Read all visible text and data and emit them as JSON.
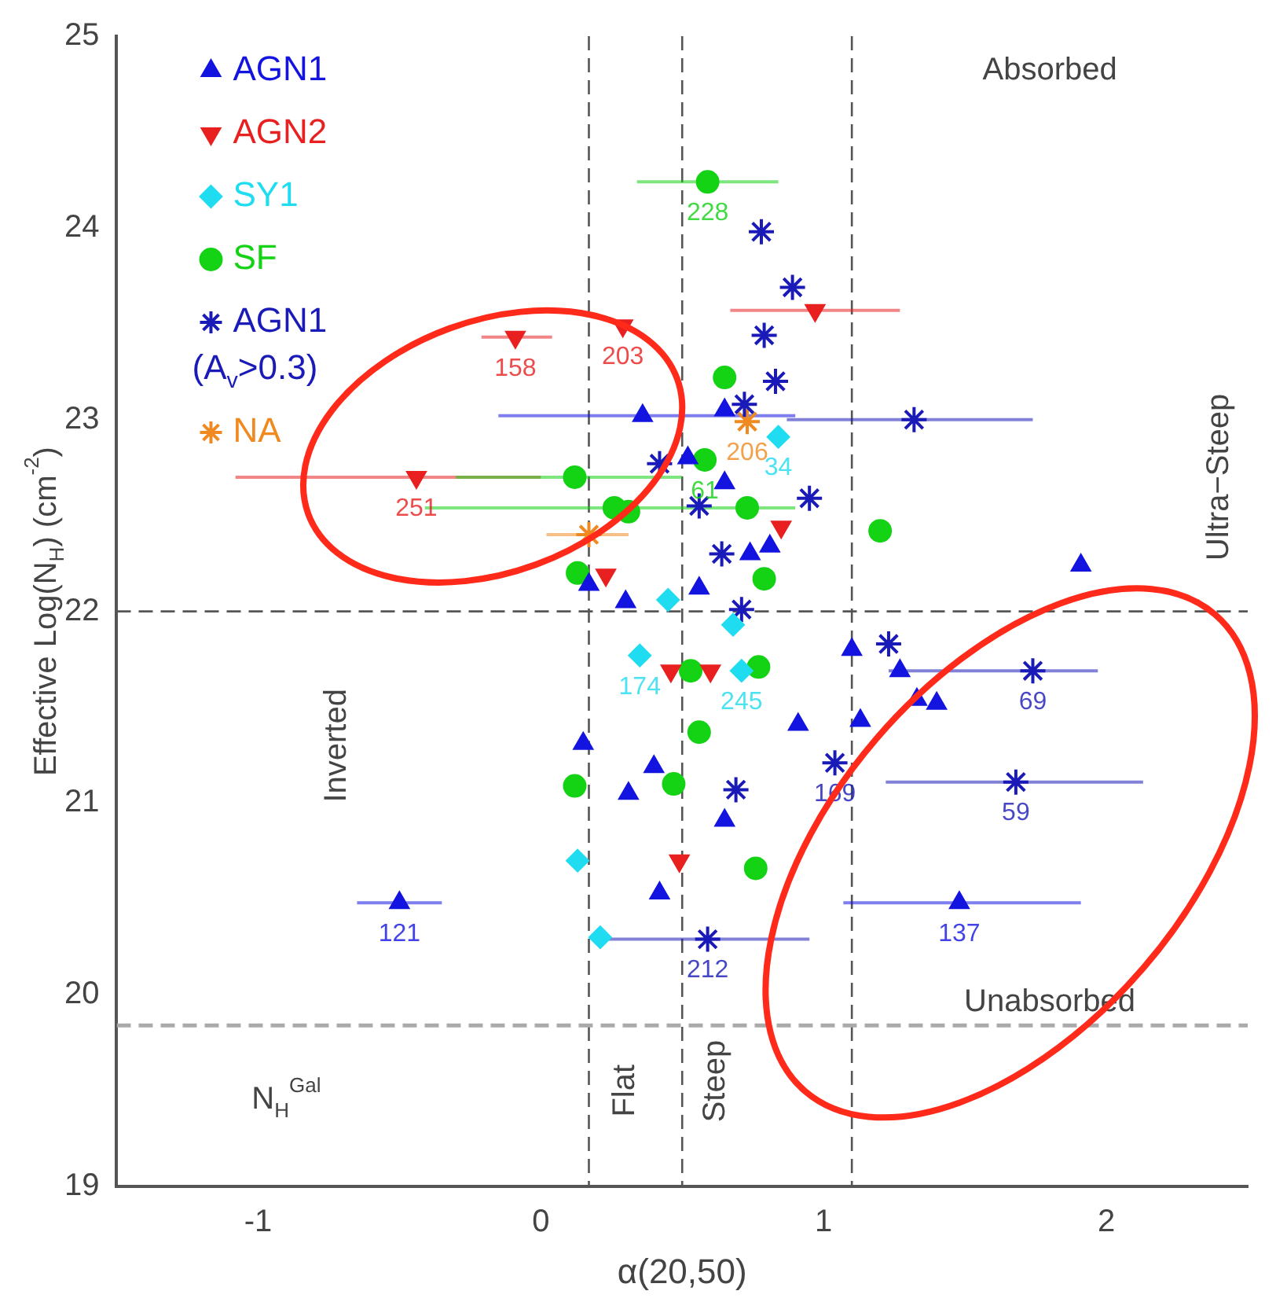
{
  "chart_data": {
    "type": "scatter",
    "xlabel": "α(20,50)",
    "ylabel": "Effective Log(N$_{H}$) (cm$^{-2}$)",
    "xlim": [
      -1.5,
      2.5
    ],
    "xticks": [
      -1,
      0,
      1,
      2
    ],
    "ylim": [
      19,
      25
    ],
    "yticks": [
      19,
      20,
      21,
      22,
      23,
      24,
      25
    ],
    "grid": false,
    "legend": "top left",
    "series": [
      {
        "name": "AGN1",
        "color": "#1414e0",
        "marker": "triangle",
        "x": [
          0.36,
          0.52,
          0.65,
          0.65,
          0.81,
          0.74,
          0.56,
          0.17,
          0.3,
          1.91,
          1.1,
          1.27,
          1.33,
          1.4,
          0.91,
          1.13,
          0.4,
          0.31,
          0.15,
          0.65,
          0.42,
          1.48,
          -0.5
        ],
        "values": [
          23.02,
          22.8,
          23.05,
          22.67,
          22.34,
          22.3,
          22.12,
          22.14,
          22.05,
          22.24,
          21.8,
          21.69,
          21.54,
          21.52,
          21.41,
          21.43,
          21.19,
          21.05,
          21.31,
          20.91,
          20.53,
          20.48,
          20.48
        ],
        "xerrors": [
          [
            -0.15,
            0.9
          ],
          null,
          null,
          null,
          null,
          null,
          null,
          null,
          null,
          null,
          null,
          null,
          null,
          null,
          null,
          null,
          null,
          null,
          null,
          null,
          null,
          [
            1.07,
            1.91
          ],
          [
            -0.65,
            -0.35
          ]
        ]
      },
      {
        "name": "AGN2",
        "color": "#e82020",
        "marker": "triangle-down",
        "x": [
          -0.09,
          -0.44,
          0.29,
          0.97,
          0.85,
          0.23,
          0.46,
          0.6,
          0.49
        ],
        "values": [
          23.43,
          22.7,
          23.49,
          23.57,
          22.44,
          22.19,
          21.69,
          21.69,
          20.7
        ],
        "xerrors": [
          [
            -0.21,
            0.04
          ],
          [
            -1.08,
            0.0
          ],
          null,
          [
            0.67,
            1.27
          ],
          null,
          null,
          null,
          null,
          null
        ]
      },
      {
        "name": "SY1",
        "color": "#20dcf0",
        "marker": "diamond",
        "x": [
          0.45,
          0.84,
          0.68,
          0.35,
          0.71,
          0.21,
          0.13
        ],
        "values": [
          22.06,
          22.91,
          21.93,
          21.77,
          21.69,
          20.3,
          20.7
        ]
      },
      {
        "name": "SF",
        "color": "#14d214",
        "marker": "circle",
        "x": [
          0.59,
          0.12,
          0.26,
          0.31,
          0.13,
          0.65,
          0.58,
          0.73,
          1.2,
          0.79,
          0.53,
          0.77,
          0.56,
          0.47,
          0.76,
          0.12
        ],
        "values": [
          24.24,
          22.7,
          22.54,
          22.52,
          22.2,
          23.22,
          22.79,
          22.54,
          22.42,
          22.17,
          21.69,
          21.71,
          21.37,
          21.1,
          20.66,
          21.09
        ],
        "xerrors": [
          [
            0.34,
            0.84
          ],
          [
            -0.3,
            0.5
          ],
          [
            -0.41,
            0.9
          ],
          null,
          null,
          null,
          null,
          null,
          null,
          null,
          null,
          null,
          null,
          null,
          null,
          null
        ]
      },
      {
        "name": "AGN1 (A$_{v}$>0.3)",
        "color": "#1a1ab8",
        "marker": "cross",
        "x": [
          0.78,
          0.89,
          0.79,
          0.83,
          0.72,
          1.32,
          0.42,
          0.95,
          0.56,
          0.64,
          0.71,
          1.23,
          1.74,
          1.04,
          0.69,
          1.68,
          0.59
        ],
        "values": [
          23.98,
          23.69,
          23.44,
          23.2,
          23.08,
          23.0,
          22.77,
          22.59,
          22.55,
          22.3,
          22.01,
          21.83,
          21.69,
          21.21,
          21.07,
          21.11,
          20.29
        ],
        "xerrors": [
          null,
          null,
          null,
          null,
          null,
          [
            0.87,
            1.74
          ],
          null,
          null,
          null,
          null,
          null,
          null,
          [
            1.23,
            1.97
          ],
          null,
          null,
          [
            1.22,
            2.13
          ],
          [
            0.2,
            0.95
          ]
        ]
      },
      {
        "name": "NA",
        "color": "#f08a20",
        "marker": "cross",
        "x": [
          0.17,
          0.73
        ],
        "values": [
          22.4,
          22.99
        ],
        "xerrors": [
          [
            0.02,
            0.31
          ],
          null
        ]
      }
    ],
    "ref_lines": [
      {
        "axis": "x",
        "value": 0.17,
        "color": "#555555",
        "line_style": "dashed"
      },
      {
        "axis": "x",
        "value": 0.5,
        "color": "#555555",
        "line_style": "dashed"
      },
      {
        "axis": "x",
        "value": 1.1,
        "color": "#555555",
        "line_style": "dashed"
      },
      {
        "axis": "y",
        "value": 22,
        "color": "#555555",
        "line_style": "dashed"
      },
      {
        "axis": "y",
        "value": 19.84,
        "color": "#aaaaaa",
        "line_style": "dashed"
      }
    ],
    "annotations": [
      "Absorbed",
      "Unabsorbed",
      "Inverted",
      "Ultra−Steep",
      "Flat",
      "Steep",
      "N$_{H}$$^{Gal}$",
      {
        "text": "158",
        "x": -0.09,
        "y": 23.43
      },
      {
        "text": "251",
        "x": -0.44,
        "y": 22.7
      },
      {
        "text": "203",
        "x": 0.29,
        "y": 23.49
      },
      {
        "text": "228",
        "x": 0.59,
        "y": 24.24
      },
      {
        "text": "34",
        "x": 0.84,
        "y": 22.91
      },
      {
        "text": "61",
        "x": 0.58,
        "y": 22.79
      },
      {
        "text": "206",
        "x": 0.73,
        "y": 22.99
      },
      {
        "text": "245",
        "x": 0.71,
        "y": 21.69
      },
      {
        "text": "174",
        "x": 0.35,
        "y": 21.77
      },
      {
        "text": "169",
        "x": 1.04,
        "y": 21.21
      },
      {
        "text": "69",
        "x": 1.74,
        "y": 21.69
      },
      {
        "text": "59",
        "x": 1.68,
        "y": 21.11
      },
      {
        "text": "137",
        "x": 1.48,
        "y": 20.48
      },
      {
        "text": "212",
        "x": 0.59,
        "y": 20.29
      },
      {
        "text": "121",
        "x": -0.5,
        "y": 20.48
      }
    ]
  }
}
